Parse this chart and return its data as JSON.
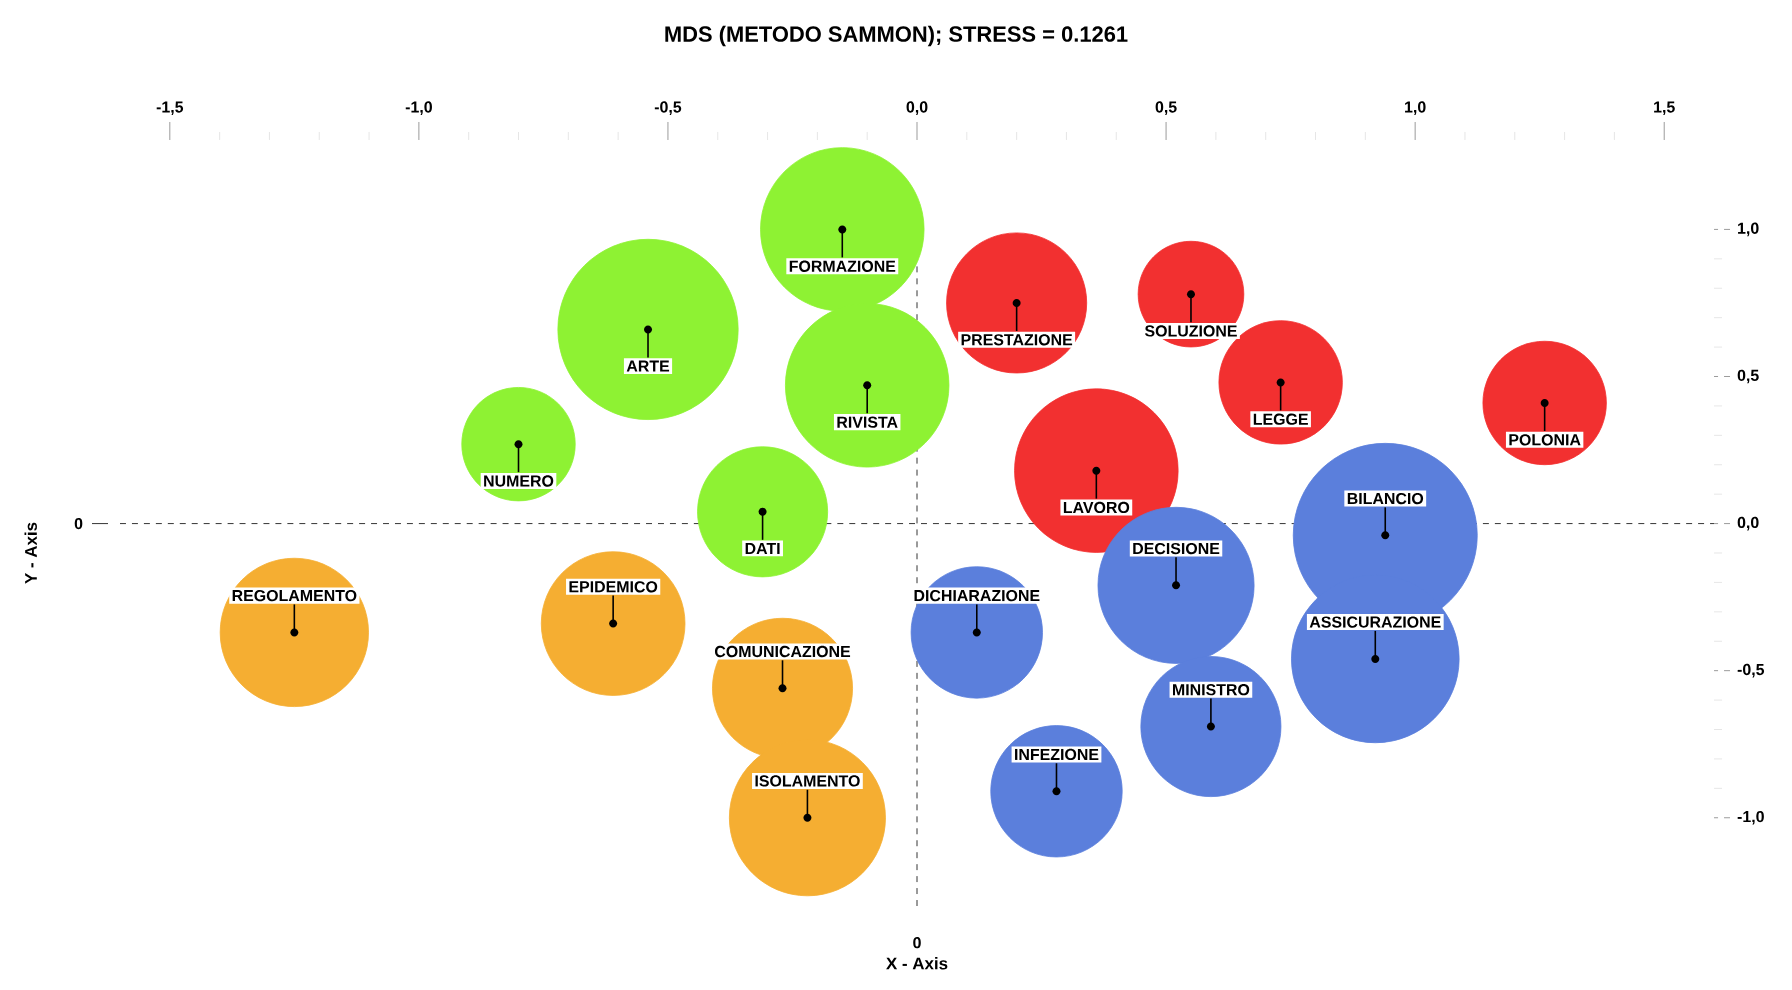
{
  "chart_data": {
    "type": "bubble",
    "title": "MDS (METODO SAMMON); STRESS = 0.1261",
    "xlabel": "X - Axis",
    "ylabel": "Y - Axis",
    "xlim": [
      -1.6,
      1.6
    ],
    "xticks": [
      {
        "value": -1.5,
        "label": "-1,5"
      },
      {
        "value": -1.0,
        "label": "-1,0"
      },
      {
        "value": -0.5,
        "label": "-0,5"
      },
      {
        "value": 0,
        "label": "0,0"
      },
      {
        "value": 0.5,
        "label": "0,5"
      },
      {
        "value": 1.0,
        "label": "1,0"
      },
      {
        "value": 1.5,
        "label": "1,5"
      }
    ],
    "ylim": [
      -1.3,
      1.1
    ],
    "yticks": [
      {
        "value": -1.0,
        "label": "-1,0"
      },
      {
        "value": -0.5,
        "label": "-0,5"
      },
      {
        "value": 0,
        "label": "0,0"
      },
      {
        "value": 0.5,
        "label": "0,5"
      },
      {
        "value": 1.0,
        "label": "1,0"
      }
    ],
    "series": [
      {
        "color": "#8ef233",
        "x": [
          -0.15,
          -0.54,
          -0.8,
          -0.1,
          -0.31
        ],
        "values": [
          1.0,
          0.66,
          0.27,
          0.47,
          0.04
        ],
        "sizes": [
          0.79,
          0.96,
          0.38,
          0.79,
          0.5
        ]
      },
      {
        "color": "#f5ae32",
        "x": [
          -1.25,
          -0.61,
          -0.27,
          -0.22
        ],
        "values": [
          -0.37,
          -0.34,
          -0.56,
          -1.0
        ],
        "sizes": [
          0.65,
          0.61,
          0.58,
          0.72
        ]
      },
      {
        "color": "#f23030",
        "x": [
          0.2,
          0.55,
          0.73,
          1.26,
          0.36
        ],
        "values": [
          0.75,
          0.78,
          0.48,
          0.41,
          0.18
        ],
        "sizes": [
          0.58,
          0.33,
          0.45,
          0.45,
          0.79
        ]
      },
      {
        "color": "#5b7fdc",
        "x": [
          0.94,
          0.52,
          0.12,
          0.92,
          0.59,
          0.28
        ],
        "values": [
          -0.04,
          -0.21,
          -0.37,
          -0.46,
          -0.69,
          -0.91
        ],
        "sizes": [
          1.0,
          0.72,
          0.51,
          0.83,
          0.58,
          0.51
        ]
      }
    ],
    "annotations": [
      {
        "text": "FORMAZIONE",
        "x": -0.15,
        "y": 1.0
      },
      {
        "text": "ARTE",
        "x": -0.54,
        "y": 0.66
      },
      {
        "text": "NUMERO",
        "x": -0.8,
        "y": 0.27
      },
      {
        "text": "RIVISTA",
        "x": -0.1,
        "y": 0.47
      },
      {
        "text": "DATI",
        "x": -0.31,
        "y": 0.04
      },
      {
        "text": "REGOLAMENTO",
        "x": -1.25,
        "y": -0.37
      },
      {
        "text": "EPIDEMICO",
        "x": -0.61,
        "y": -0.34
      },
      {
        "text": "COMUNICAZIONE",
        "x": -0.27,
        "y": -0.56
      },
      {
        "text": "ISOLAMENTO",
        "x": -0.22,
        "y": -1.0
      },
      {
        "text": "PRESTAZIONE",
        "x": 0.2,
        "y": 0.75
      },
      {
        "text": "SOLUZIONE",
        "x": 0.55,
        "y": 0.78
      },
      {
        "text": "LEGGE",
        "x": 0.73,
        "y": 0.48
      },
      {
        "text": "POLONIA",
        "x": 1.26,
        "y": 0.41
      },
      {
        "text": "LAVORO",
        "x": 0.36,
        "y": 0.18
      },
      {
        "text": "BILANCIO",
        "x": 0.94,
        "y": -0.04
      },
      {
        "text": "DECISIONE",
        "x": 0.52,
        "y": -0.21
      },
      {
        "text": "DICHIARAZIONE",
        "x": 0.12,
        "y": -0.37
      },
      {
        "text": "ASSICURAZIONE",
        "x": 0.92,
        "y": -0.46
      },
      {
        "text": "MINISTRO",
        "x": 0.59,
        "y": -0.69
      },
      {
        "text": "INFEZIONE",
        "x": 0.28,
        "y": -0.91
      },
      "0",
      "0"
    ]
  }
}
